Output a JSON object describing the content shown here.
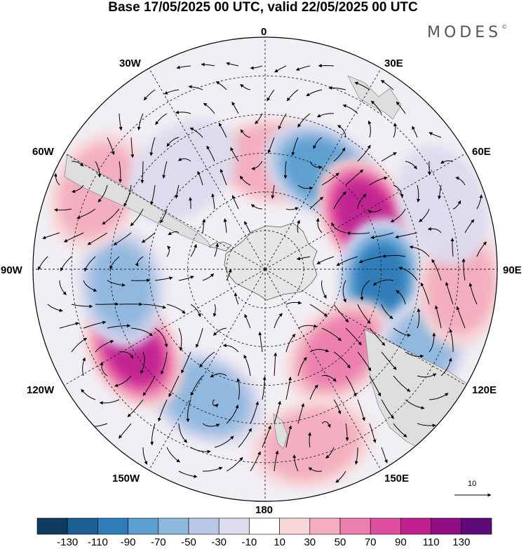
{
  "title": "Base 17/05/2025 00 UTC, valid 22/05/2025 00 UTC",
  "brand": {
    "text": "MODES",
    "mark": "©"
  },
  "longitude_labels": {
    "lon_0": "0",
    "lon_30e": "30E",
    "lon_60e": "60E",
    "lon_90e": "90E",
    "lon_120e": "120E",
    "lon_150e": "150E",
    "lon_180": "180",
    "lon_150w": "150W",
    "lon_120w": "120W",
    "lon_90w": "90W",
    "lon_60w": "60W",
    "lon_30w": "30W"
  },
  "reference_vector": {
    "value": "10"
  },
  "colorbar": {
    "colors": [
      "#0e3b5e",
      "#1b5f93",
      "#2f7cb8",
      "#5b9fd0",
      "#8fb8df",
      "#b8c8e6",
      "#dcdcee",
      "#ffffff",
      "#f8d6d8",
      "#f3adbe",
      "#ec7fae",
      "#df4f9e",
      "#c02090",
      "#920c86",
      "#5e0a78"
    ],
    "ticks": [
      "-130",
      "-110",
      "-90",
      "-70",
      "-50",
      "-30",
      "-10",
      "10",
      "30",
      "50",
      "70",
      "90",
      "110",
      "130"
    ]
  },
  "anomaly_centers": [
    {
      "lon": 5,
      "colat": 42,
      "value": 55
    },
    {
      "lon": 30,
      "colat": 44,
      "value": -95
    },
    {
      "lon": 62,
      "colat": 44,
      "value": 115
    },
    {
      "lon": 95,
      "colat": 45,
      "value": -105
    },
    {
      "lon": 138,
      "colat": 43,
      "value": 60
    },
    {
      "lon": 118,
      "colat": 68,
      "value": -60
    },
    {
      "lon": 165,
      "colat": 70,
      "value": 45
    },
    {
      "lon": 205,
      "colat": 55,
      "value": -70
    },
    {
      "lon": 238,
      "colat": 60,
      "value": 100
    },
    {
      "lon": 263,
      "colat": 56,
      "value": -60
    },
    {
      "lon": 295,
      "colat": 72,
      "value": 45
    },
    {
      "lon": 320,
      "colat": 50,
      "value": -35
    },
    {
      "lon": 95,
      "colat": 76,
      "value": 40
    },
    {
      "lon": 70,
      "colat": 73,
      "value": -30
    }
  ]
}
